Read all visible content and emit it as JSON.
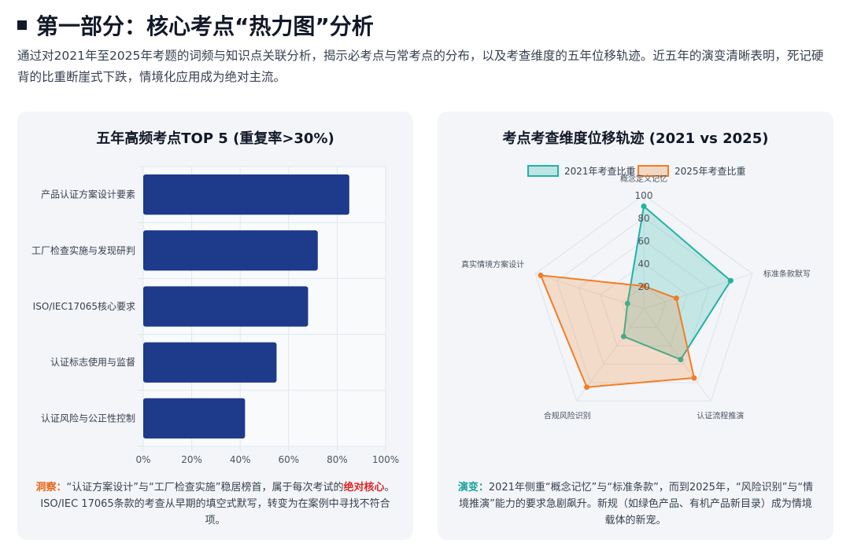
{
  "header": {
    "title": "第一部分：核心考点“热力图”分析",
    "subtitle": "通过对2021年至2025年考题的词频与知识点关联分析，揭示必考点与常考点的分布，以及考查维度的五年位移轨迹。近五年的演变清晰表明，死记硬背的比重断崖式下跌，情境化应用成为绝对主流。"
  },
  "left_card": {
    "title": "五年高频考点TOP 5 (重复率>30%)",
    "insight_label": "洞察：",
    "insight_text_1": "“认证方案设计”与“工厂检查实施”稳居榜首，属于每次考试的",
    "insight_highlight": "绝对核心",
    "insight_text_2": "。ISO/IEC 17065条款的考查从早期的填空式默写，转变为在案例中寻找不符合项。",
    "bar_color": "#1e3a8a"
  },
  "right_card": {
    "title": "考点考查维度位移轨迹 (2021 vs 2025)",
    "insight_label": "演变：",
    "insight_text": "2021年侧重“概念记忆”与“标准条款”，而到2025年，“风险识别”与“情境推演”能力的要求急剧飙升。新规（如绿色产品、有机产品新目录）成为情境载体的新宠。",
    "color_2021": "#20b2a6",
    "color_2025": "#f07e26"
  },
  "chart_data": [
    {
      "type": "bar",
      "orientation": "horizontal",
      "title": "五年高频考点TOP 5 (重复率>30%)",
      "categories": [
        "产品认证方案设计要素",
        "工厂检查实施与发现研判",
        "ISO/IEC17065核心要求",
        "认证标志使用与监督",
        "认证风险与公正性控制"
      ],
      "values": [
        85,
        72,
        68,
        55,
        42
      ],
      "xlim": [
        0,
        100
      ],
      "x_ticks": [
        "0%",
        "20%",
        "40%",
        "60%",
        "80%",
        "100%"
      ],
      "grid": true
    },
    {
      "type": "radar",
      "title": "考点考查维度位移轨迹 (2021 vs 2025)",
      "axes": [
        "概念定义记忆",
        "标准条款默写",
        "认证流程推演",
        "合规风险识别",
        "真实情境方案设计"
      ],
      "r_ticks": [
        "20",
        "40",
        "60",
        "80",
        "100"
      ],
      "rlim": [
        0,
        100
      ],
      "legend_position": "top",
      "series": [
        {
          "name": "2021年考查比重",
          "values": [
            90,
            80,
            55,
            30,
            15
          ]
        },
        {
          "name": "2025年考查比重",
          "values": [
            20,
            30,
            75,
            85,
            95
          ]
        }
      ]
    }
  ]
}
